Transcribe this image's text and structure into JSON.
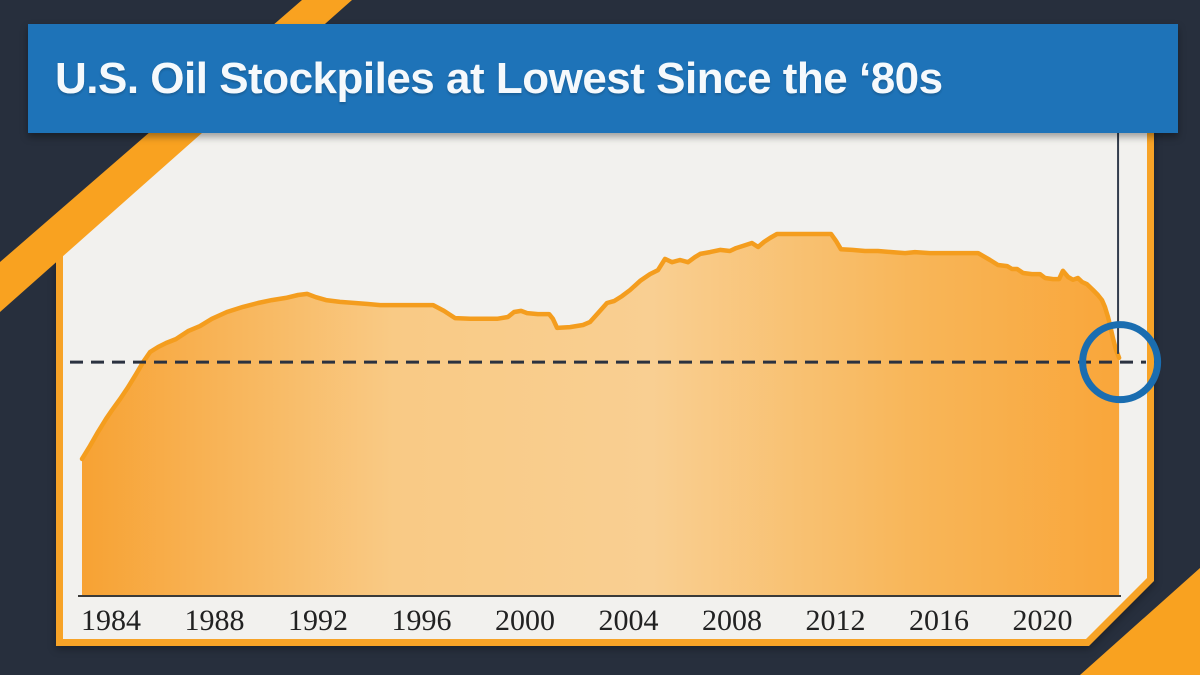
{
  "header": {
    "title": "U.S. Oil Stockpiles at Lowest Since the ‘80s"
  },
  "colors": {
    "navy_background": "#272F3D",
    "banner_blue": "#1E73B8",
    "title_text": "#F5F9FC",
    "decor_orange": "#F9A220",
    "panel_border_orange": "#F7A327",
    "panel_background": "#F2F1EE",
    "area_stroke_orange": "#F49D1E",
    "area_gradient": [
      "#F7A233",
      "#F9CA85",
      "#F9CF92",
      "#F8B659",
      "#F9A63A"
    ],
    "dashed_line": "#2B3240",
    "axis_line": "#3B3B39",
    "tick_text": "#222222",
    "marker_line": "#333D4D",
    "circle_blue": "#1A6DB0"
  },
  "chart_data": {
    "type": "area",
    "title": "U.S. Oil Stockpiles at Lowest Since the ‘80s",
    "xlabel": "",
    "ylabel": "",
    "x_ticks": [
      1984,
      1988,
      1992,
      1996,
      2000,
      2004,
      2008,
      2012,
      2016,
      2020
    ],
    "x_range": [
      1982.9,
      2023.0
    ],
    "y_axis_note": "no visible scale; values are index, 100 = peak stockpile level (~2009-2011)",
    "grid": "off",
    "legend": "none",
    "threshold_line": {
      "style": "dashed",
      "value": 64.5,
      "meaning": "current level equals mid-1980s level"
    },
    "current_marker_line_year": 2022.92,
    "lowest_point_circle": {
      "year": 2023.0,
      "value": 64.5
    },
    "points": [
      [
        1982.88,
        37.7
      ],
      [
        1983.19,
        41.3
      ],
      [
        1983.5,
        45.2
      ],
      [
        1983.81,
        48.8
      ],
      [
        1984.04,
        51.2
      ],
      [
        1984.35,
        54.3
      ],
      [
        1984.66,
        57.6
      ],
      [
        1984.97,
        61.2
      ],
      [
        1985.24,
        64.5
      ],
      [
        1985.51,
        67.3
      ],
      [
        1985.82,
        68.7
      ],
      [
        1986.13,
        69.8
      ],
      [
        1986.51,
        70.9
      ],
      [
        1986.98,
        73.1
      ],
      [
        1987.44,
        74.5
      ],
      [
        1987.9,
        76.5
      ],
      [
        1988.48,
        78.4
      ],
      [
        1989.1,
        79.8
      ],
      [
        1989.68,
        80.9
      ],
      [
        1990.22,
        81.7
      ],
      [
        1990.76,
        82.3
      ],
      [
        1991.23,
        83.1
      ],
      [
        1991.58,
        83.4
      ],
      [
        1991.92,
        82.5
      ],
      [
        1992.31,
        81.7
      ],
      [
        1992.85,
        81.2
      ],
      [
        1993.43,
        80.9
      ],
      [
        1993.93,
        80.6
      ],
      [
        1994.4,
        80.3
      ],
      [
        1996.45,
        80.3
      ],
      [
        1996.87,
        78.7
      ],
      [
        1997.3,
        76.7
      ],
      [
        1997.88,
        76.5
      ],
      [
        1998.46,
        76.5
      ],
      [
        1998.92,
        76.5
      ],
      [
        1999.34,
        77.0
      ],
      [
        1999.58,
        78.4
      ],
      [
        1999.85,
        78.7
      ],
      [
        2000.08,
        78.1
      ],
      [
        2000.5,
        77.8
      ],
      [
        2000.93,
        77.8
      ],
      [
        2001.08,
        76.5
      ],
      [
        2001.24,
        74.0
      ],
      [
        2001.74,
        74.2
      ],
      [
        2002.24,
        74.8
      ],
      [
        2002.51,
        75.6
      ],
      [
        2002.82,
        78.1
      ],
      [
        2003.17,
        80.9
      ],
      [
        2003.44,
        81.4
      ],
      [
        2003.75,
        82.8
      ],
      [
        2004.06,
        84.5
      ],
      [
        2004.45,
        87.0
      ],
      [
        2004.83,
        88.9
      ],
      [
        2005.14,
        90.0
      ],
      [
        2005.41,
        93.1
      ],
      [
        2005.68,
        92.2
      ],
      [
        2005.99,
        92.8
      ],
      [
        2006.3,
        92.2
      ],
      [
        2006.57,
        93.6
      ],
      [
        2006.77,
        94.5
      ],
      [
        2007.15,
        95.0
      ],
      [
        2007.54,
        95.6
      ],
      [
        2007.92,
        95.3
      ],
      [
        2008.16,
        96.1
      ],
      [
        2008.43,
        96.7
      ],
      [
        2008.77,
        97.5
      ],
      [
        2009.01,
        96.4
      ],
      [
        2009.24,
        97.8
      ],
      [
        2009.47,
        98.9
      ],
      [
        2009.74,
        100.0
      ],
      [
        2011.83,
        100.0
      ],
      [
        2012.02,
        98.1
      ],
      [
        2012.21,
        95.8
      ],
      [
        2012.64,
        95.6
      ],
      [
        2013.14,
        95.3
      ],
      [
        2013.64,
        95.3
      ],
      [
        2014.18,
        95.0
      ],
      [
        2014.69,
        94.7
      ],
      [
        2015.07,
        95.0
      ],
      [
        2015.65,
        94.7
      ],
      [
        2016.23,
        94.7
      ],
      [
        2016.81,
        94.7
      ],
      [
        2017.51,
        94.7
      ],
      [
        2017.97,
        92.8
      ],
      [
        2018.28,
        91.4
      ],
      [
        2018.63,
        91.1
      ],
      [
        2018.82,
        90.3
      ],
      [
        2019.02,
        90.3
      ],
      [
        2019.25,
        89.2
      ],
      [
        2019.59,
        88.9
      ],
      [
        2019.9,
        88.9
      ],
      [
        2020.1,
        87.8
      ],
      [
        2020.41,
        87.5
      ],
      [
        2020.64,
        87.5
      ],
      [
        2020.79,
        89.8
      ],
      [
        2020.99,
        88.1
      ],
      [
        2021.18,
        87.3
      ],
      [
        2021.37,
        87.8
      ],
      [
        2021.53,
        86.7
      ],
      [
        2021.72,
        86.1
      ],
      [
        2021.95,
        84.5
      ],
      [
        2022.14,
        83.1
      ],
      [
        2022.3,
        81.7
      ],
      [
        2022.41,
        79.8
      ],
      [
        2022.53,
        77.0
      ],
      [
        2022.61,
        74.8
      ],
      [
        2022.72,
        71.2
      ],
      [
        2022.84,
        67.9
      ],
      [
        2022.96,
        65.7
      ]
    ]
  }
}
